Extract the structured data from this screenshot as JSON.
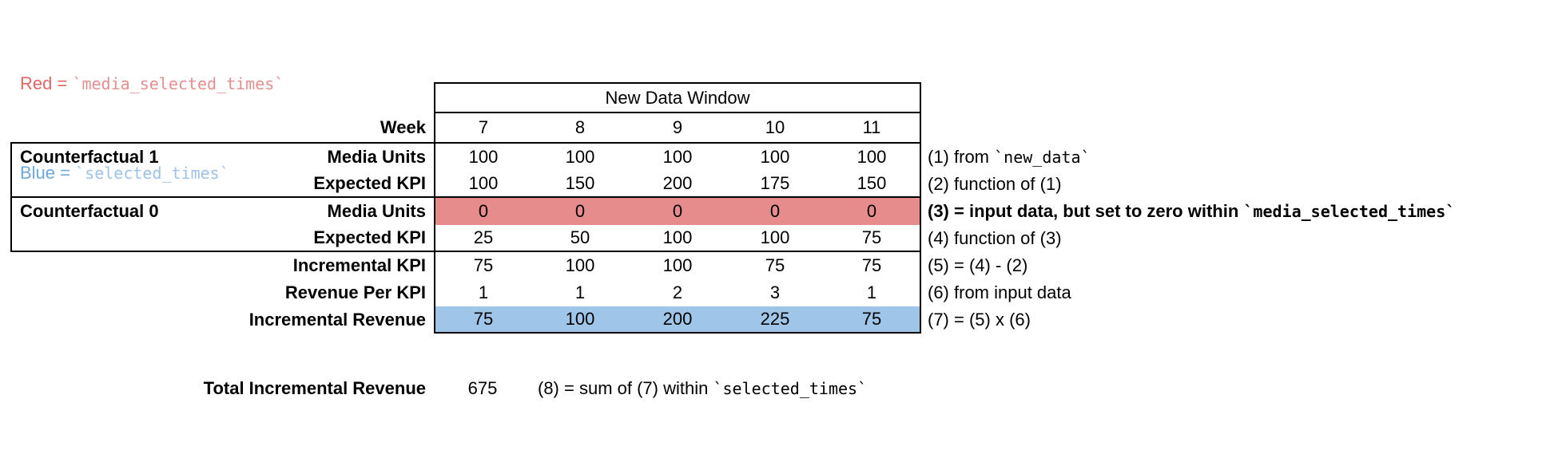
{
  "legend": {
    "red_label": "Red = ",
    "red_code": "`media_selected_times`",
    "blue_label": "Blue = ",
    "blue_code": "`selected_times`"
  },
  "table": {
    "header": "New Data Window",
    "week_label": "Week",
    "weeks": [
      "7",
      "8",
      "9",
      "10",
      "11"
    ],
    "groups": [
      {
        "label": "Counterfactual 1"
      },
      {
        "label": "Counterfactual 0"
      }
    ],
    "rows": [
      {
        "label": "Media Units",
        "values": [
          "100",
          "100",
          "100",
          "100",
          "100"
        ],
        "annotation": {
          "pre": "(1) from ",
          "code": "`new_data`",
          "post": ""
        }
      },
      {
        "label": "Expected KPI",
        "values": [
          "100",
          "150",
          "200",
          "175",
          "150"
        ],
        "annotation": {
          "pre": "(2) function of (1)",
          "code": "",
          "post": ""
        }
      },
      {
        "label": "Media Units",
        "values": [
          "0",
          "0",
          "0",
          "0",
          "0"
        ],
        "highlight": "red",
        "annotation": {
          "pre": "(3) = input data, but set to zero within ",
          "code": "`media_selected_times`",
          "post": ""
        }
      },
      {
        "label": "Expected KPI",
        "values": [
          "25",
          "50",
          "100",
          "100",
          "75"
        ],
        "annotation": {
          "pre": "(4) function of (3)",
          "code": "",
          "post": ""
        }
      },
      {
        "label": "Incremental KPI",
        "values": [
          "75",
          "100",
          "100",
          "75",
          "75"
        ],
        "annotation": {
          "pre": "(5) = (4) - (2)",
          "code": "",
          "post": ""
        }
      },
      {
        "label": "Revenue Per KPI",
        "values": [
          "1",
          "1",
          "2",
          "3",
          "1"
        ],
        "annotation": {
          "pre": "(6) from input data",
          "code": "",
          "post": ""
        }
      },
      {
        "label": "Incremental Revenue",
        "values": [
          "75",
          "100",
          "200",
          "225",
          "75"
        ],
        "highlight": "blue",
        "annotation": {
          "pre": "(7) = (5) x (6)",
          "code": "",
          "post": ""
        }
      }
    ]
  },
  "total": {
    "label": "Total Incremental Revenue",
    "value": "675",
    "annotation": {
      "pre": "(8) = sum of (7) within ",
      "code": "`selected_times`",
      "post": ""
    }
  },
  "colors": {
    "redText": "#e06666",
    "redCode": "#e48f8f",
    "blueText": "#6fa8dc",
    "blueCode": "#9dc3e6",
    "redFill": "#e68c8c",
    "blueFill": "#9fc5e8"
  }
}
